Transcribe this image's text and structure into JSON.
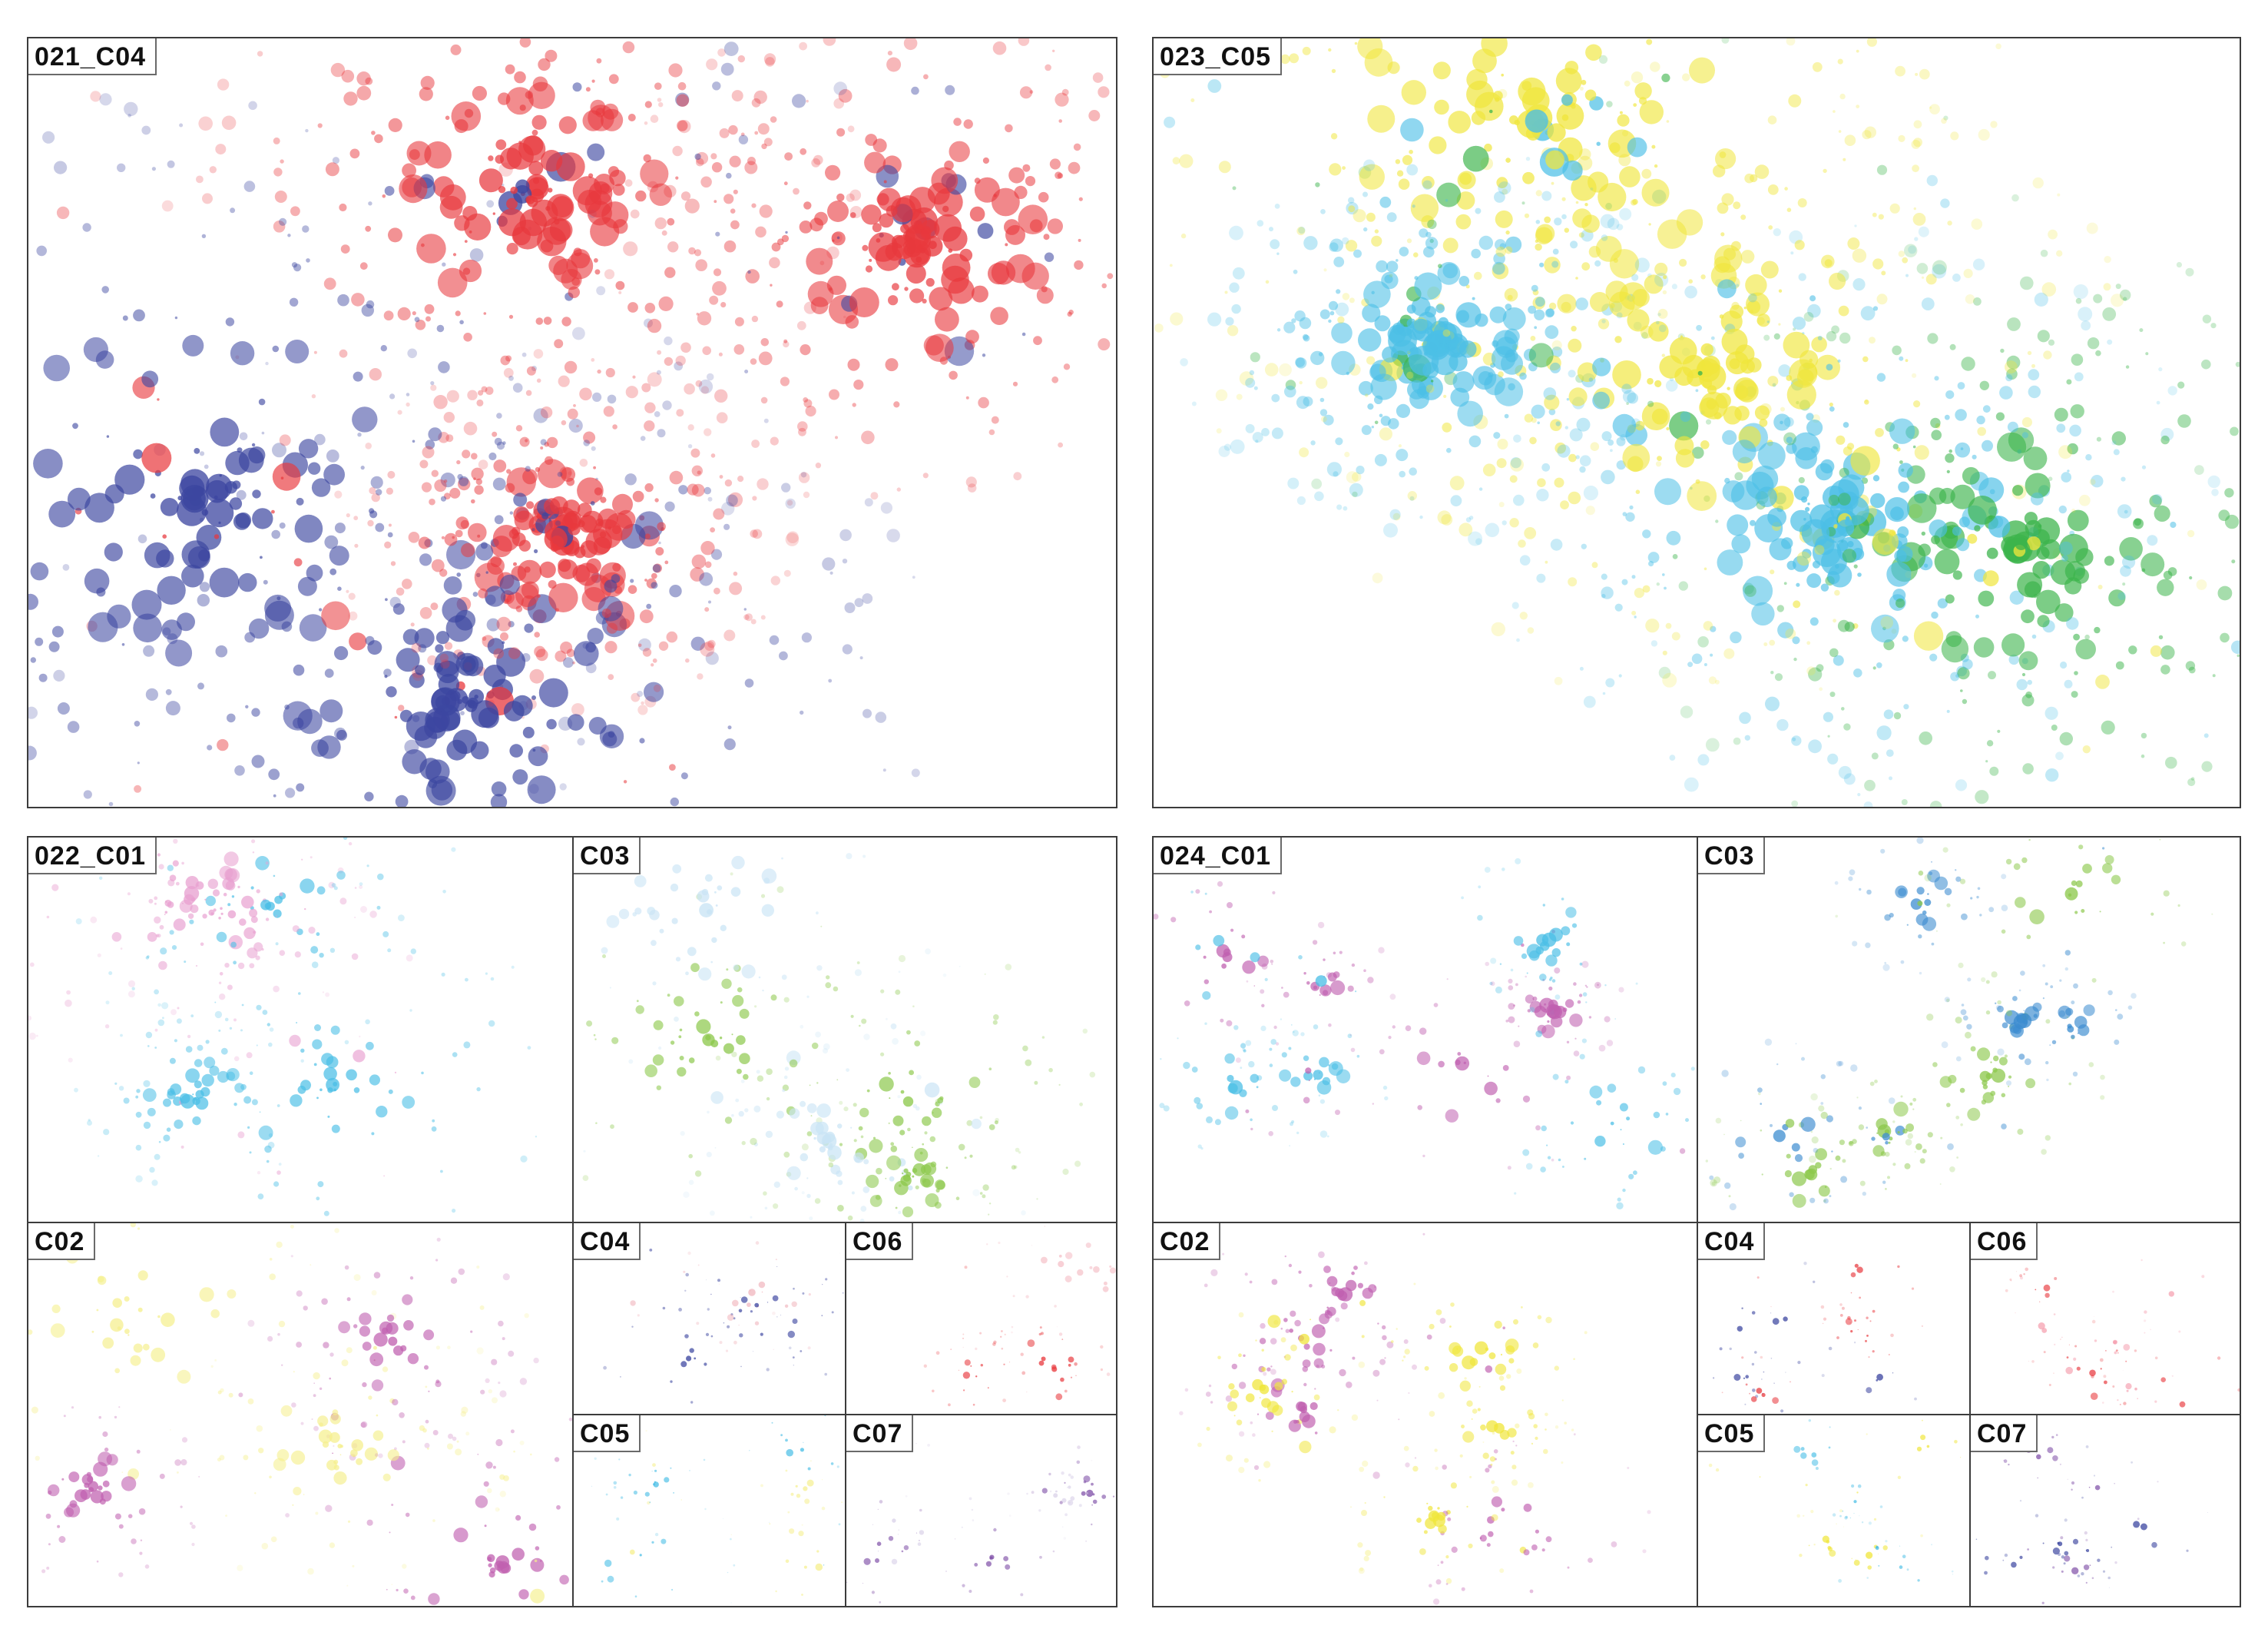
{
  "panels": [
    {
      "label": "021_C04",
      "colors": [
        "#e8383d",
        "#3c46a0"
      ],
      "mode": "group"
    },
    {
      "label": "023_C05",
      "colors": [
        "#f0e63c",
        "#4cbfe6",
        "#3cb44b"
      ],
      "mode": "group"
    },
    {
      "label": "022_C01",
      "colors": [
        "#4cbfe6",
        "#e8a0d0"
      ],
      "mode": "group"
    },
    {
      "label": "C03",
      "colors": [
        "#8cc84b",
        "#c9e4f5"
      ],
      "mode": "group"
    },
    {
      "label": "C02",
      "colors": [
        "#c060b0",
        "#f5ef8c"
      ],
      "mode": "group"
    },
    {
      "label": "C04",
      "colors": [
        "#3c46a0",
        "#f0b4bc"
      ],
      "mode": "group"
    },
    {
      "label": "C06",
      "colors": [
        "#e8383d",
        "#f5c0c8"
      ],
      "mode": "group"
    },
    {
      "label": "C05",
      "colors": [
        "#4cbfe6",
        "#f5ef8c"
      ],
      "mode": "group"
    },
    {
      "label": "C07",
      "colors": [
        "#8050a8",
        "#d8d0e8"
      ],
      "mode": "group"
    },
    {
      "label": "024_C01",
      "colors": [
        "#4cbfe6",
        "#c060b0"
      ],
      "mode": "scatter"
    },
    {
      "label": "C03",
      "colors": [
        "#8cc84b",
        "#3c8cd0"
      ],
      "mode": "scatter"
    },
    {
      "label": "C02",
      "colors": [
        "#c060b0",
        "#f0e63c"
      ],
      "mode": "scatter"
    },
    {
      "label": "C04",
      "colors": [
        "#3c46a0",
        "#e8383d"
      ],
      "mode": "scatter"
    },
    {
      "label": "C06",
      "colors": [
        "#e8383d",
        "#f5a0b0"
      ],
      "mode": "scatter"
    },
    {
      "label": "C05",
      "colors": [
        "#4cbfe6",
        "#f0e63c"
      ],
      "mode": "scatter"
    },
    {
      "label": "C07",
      "colors": [
        "#8050a8",
        "#3c46a0"
      ],
      "mode": "scatter"
    }
  ]
}
